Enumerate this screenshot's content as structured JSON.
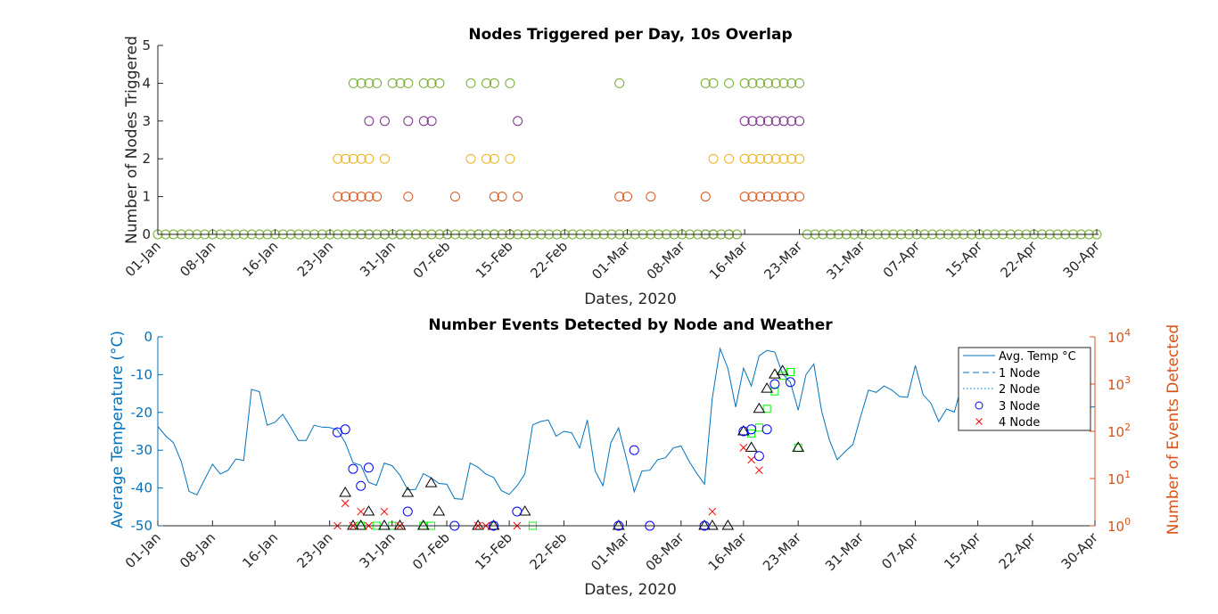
{
  "chart_data": [
    {
      "type": "scatter",
      "title": "Nodes Triggered per Day, 10s Overlap",
      "xlabel": "Dates, 2020",
      "ylabel": "Number of Nodes Triggered",
      "xlim": [
        "2020-01-01",
        "2020-04-30"
      ],
      "ylim": [
        0,
        5
      ],
      "yticks": [
        "0",
        "1",
        "2",
        "3",
        "4",
        "5"
      ],
      "xticks": [
        {
          "date": "2020-01-01",
          "label": "01-Jan"
        },
        {
          "date": "2020-01-08",
          "label": "08-Jan"
        },
        {
          "date": "2020-01-16",
          "label": "16-Jan"
        },
        {
          "date": "2020-01-23",
          "label": "23-Jan"
        },
        {
          "date": "2020-01-31",
          "label": "31-Jan"
        },
        {
          "date": "2020-02-07",
          "label": "07-Feb"
        },
        {
          "date": "2020-02-15",
          "label": "15-Feb"
        },
        {
          "date": "2020-02-22",
          "label": "22-Feb"
        },
        {
          "date": "2020-03-01",
          "label": "01-Mar"
        },
        {
          "date": "2020-03-08",
          "label": "08-Mar"
        },
        {
          "date": "2020-03-16",
          "label": "16-Mar"
        },
        {
          "date": "2020-03-23",
          "label": "23-Mar"
        },
        {
          "date": "2020-03-31",
          "label": "31-Mar"
        },
        {
          "date": "2020-04-07",
          "label": "07-Apr"
        },
        {
          "date": "2020-04-15",
          "label": "15-Apr"
        },
        {
          "date": "2020-04-22",
          "label": "22-Apr"
        },
        {
          "date": "2020-04-30",
          "label": "30-Apr"
        }
      ],
      "marker": "circle",
      "grid": false,
      "series": [
        {
          "color": "#77ac30",
          "y": 4,
          "dates": [
            "2020-01-26",
            "2020-01-27",
            "2020-01-28",
            "2020-01-29",
            "2020-01-31",
            "2020-02-01",
            "2020-02-02",
            "2020-02-04",
            "2020-02-05",
            "2020-02-06",
            "2020-02-10",
            "2020-02-12",
            "2020-02-13",
            "2020-02-15",
            "2020-02-29",
            "2020-03-11",
            "2020-03-12",
            "2020-03-14",
            "2020-03-16",
            "2020-03-17",
            "2020-03-18",
            "2020-03-19",
            "2020-03-20",
            "2020-03-21",
            "2020-03-22",
            "2020-03-23"
          ]
        },
        {
          "color": "#7e2f8e",
          "y": 3,
          "dates": [
            "2020-01-28",
            "2020-01-30",
            "2020-02-02",
            "2020-02-04",
            "2020-02-05",
            "2020-02-16",
            "2020-03-16",
            "2020-03-17",
            "2020-03-18",
            "2020-03-19",
            "2020-03-20",
            "2020-03-21",
            "2020-03-22",
            "2020-03-23"
          ]
        },
        {
          "color": "#edb120",
          "y": 2,
          "dates": [
            "2020-01-24",
            "2020-01-25",
            "2020-01-26",
            "2020-01-27",
            "2020-01-28",
            "2020-01-30",
            "2020-02-10",
            "2020-02-12",
            "2020-02-13",
            "2020-02-15",
            "2020-03-12",
            "2020-03-14",
            "2020-03-16",
            "2020-03-17",
            "2020-03-18",
            "2020-03-19",
            "2020-03-20",
            "2020-03-21",
            "2020-03-22",
            "2020-03-23"
          ]
        },
        {
          "color": "#d95319",
          "y": 1,
          "dates": [
            "2020-01-24",
            "2020-01-25",
            "2020-01-26",
            "2020-01-27",
            "2020-01-28",
            "2020-01-29",
            "2020-02-02",
            "2020-02-08",
            "2020-02-13",
            "2020-02-14",
            "2020-02-16",
            "2020-02-29",
            "2020-03-01",
            "2020-03-04",
            "2020-03-11",
            "2020-03-16",
            "2020-03-17",
            "2020-03-18",
            "2020-03-19",
            "2020-03-20",
            "2020-03-21",
            "2020-03-22",
            "2020-03-23"
          ]
        },
        {
          "color": "#7e2f8e",
          "y": 0,
          "dates": [
            "2020-01-27",
            "2020-01-28",
            "2020-01-30",
            "2020-02-01",
            "2020-02-03",
            "2020-02-07",
            "2020-02-11",
            "2020-02-13",
            "2020-02-15",
            "2020-03-11",
            "2020-03-12",
            "2020-03-14"
          ]
        },
        {
          "color": "#edb120",
          "y": 0,
          "dates": [
            "2020-02-05"
          ]
        },
        {
          "color": "#77ac30",
          "y": 0,
          "date_range": [
            "2020-01-01",
            "2020-04-30"
          ],
          "exclude_range": [
            "2020-03-16",
            "2020-03-23"
          ]
        }
      ]
    },
    {
      "type": "line",
      "title": "Number Events Detected by Node and Weather",
      "xlabel": "Dates, 2020",
      "ylabel_left": "Average Temperature (°C)",
      "ylabel_right": "Number of Events Detected",
      "left_axis_color": "#0072bd",
      "right_axis_color": "#d95319",
      "ylim_left": [
        -50,
        0
      ],
      "yticks_left": [
        "-50",
        "-40",
        "-30",
        "-20",
        "-10",
        "0"
      ],
      "ylim_right": [
        1,
        10000
      ],
      "yscale_right": "log",
      "yticks_right": [
        {
          "value": 1,
          "base": "10",
          "exp": "0"
        },
        {
          "value": 10,
          "base": "10",
          "exp": "1"
        },
        {
          "value": 100,
          "base": "10",
          "exp": "2"
        },
        {
          "value": 1000,
          "base": "10",
          "exp": "3"
        },
        {
          "value": 10000,
          "base": "10",
          "exp": "4"
        }
      ],
      "xlim": [
        "2020-01-01",
        "2020-04-30"
      ],
      "xticks": [
        {
          "date": "2020-01-01",
          "label": "01-Jan"
        },
        {
          "date": "2020-01-08",
          "label": "08-Jan"
        },
        {
          "date": "2020-01-16",
          "label": "16-Jan"
        },
        {
          "date": "2020-01-23",
          "label": "23-Jan"
        },
        {
          "date": "2020-01-31",
          "label": "31-Jan"
        },
        {
          "date": "2020-02-07",
          "label": "07-Feb"
        },
        {
          "date": "2020-02-15",
          "label": "15-Feb"
        },
        {
          "date": "2020-02-22",
          "label": "22-Feb"
        },
        {
          "date": "2020-03-01",
          "label": "01-Mar"
        },
        {
          "date": "2020-03-08",
          "label": "08-Mar"
        },
        {
          "date": "2020-03-16",
          "label": "16-Mar"
        },
        {
          "date": "2020-03-23",
          "label": "23-Mar"
        },
        {
          "date": "2020-03-31",
          "label": "31-Mar"
        },
        {
          "date": "2020-04-07",
          "label": "07-Apr"
        },
        {
          "date": "2020-04-15",
          "label": "15-Apr"
        },
        {
          "date": "2020-04-22",
          "label": "22-Apr"
        },
        {
          "date": "2020-04-30",
          "label": "30-Apr"
        }
      ],
      "legend_position": "top-right",
      "legend": [
        {
          "label": "Avg. Temp °C",
          "style": "solid-line",
          "color": "#0072bd"
        },
        {
          "label": "1 Node",
          "style": "dashed-line",
          "color": "#0072bd"
        },
        {
          "label": "2 Node",
          "style": "dotted-line",
          "color": "#0072bd"
        },
        {
          "label": "3 Node",
          "style": "circle",
          "color": "#0000ff"
        },
        {
          "label": "4 Node",
          "style": "cross",
          "color": "#ff0000"
        }
      ],
      "temperature": {
        "name": "Avg. Temp °C",
        "color": "#0072bd",
        "start": "2020-01-01",
        "values": [
          -23.7,
          -26.2,
          -28.0,
          -33.0,
          -40.9,
          -41.8,
          -37.7,
          -33.7,
          -36.3,
          -35.3,
          -32.3,
          -32.7,
          -13.9,
          -14.5,
          -23.4,
          -22.6,
          -20.5,
          -23.9,
          -27.4,
          -27.4,
          -23.4,
          -23.9,
          -24.0,
          -24.6,
          -28.0,
          -33.3,
          -34.0,
          -38.5,
          -39.3,
          -33.4,
          -34.1,
          -36.6,
          -40.5,
          -40.4,
          -36.2,
          -37.3,
          -38.8,
          -39.0,
          -42.8,
          -43.0,
          -33.4,
          -34.5,
          -36.3,
          -37.2,
          -40.7,
          -41.7,
          -39.4,
          -36.3,
          -23.3,
          -22.4,
          -22.0,
          -26.3,
          -25.0,
          -25.4,
          -29.4,
          -22.0,
          -35.5,
          -39.4,
          -28.1,
          -24.1,
          -32.2,
          -41.0,
          -35.5,
          -35.3,
          -32.5,
          -32.0,
          -29.4,
          -28.9,
          -32.8,
          -36.1,
          -39.0,
          -16.3,
          -3.1,
          -8.4,
          -18.6,
          -8.3,
          -13.0,
          -5.0,
          -3.6,
          -4.0,
          -9.8,
          -12.0,
          -19.4,
          -10.0,
          -7.2,
          -19.7,
          -27.3,
          -32.5,
          -30.4,
          -28.5,
          -21.0,
          -14.1,
          -14.7,
          -13.0,
          -14.1,
          -15.8,
          -16.0,
          -7.6,
          -15.3,
          -17.6,
          -22.4,
          -19.1,
          -19.9,
          -12.4,
          -8.2,
          -7.0,
          -10.0,
          -12.6,
          -14.5,
          -15.0,
          -16.2,
          -17.2,
          -16.0,
          -18.0,
          -19.1,
          -20.2,
          -19.0,
          -18.5,
          -18.3,
          -18.7,
          -18.5
        ]
      },
      "event_series": [
        {
          "name": "1 Node",
          "marker": "square",
          "color": "#00ff00",
          "points": [
            {
              "date": "2020-01-27",
              "count": 1
            },
            {
              "date": "2020-01-29",
              "count": 1
            },
            {
              "date": "2020-01-31",
              "count": 1
            },
            {
              "date": "2020-02-04",
              "count": 1
            },
            {
              "date": "2020-02-05",
              "count": 1
            },
            {
              "date": "2020-02-13",
              "count": 1
            },
            {
              "date": "2020-02-18",
              "count": 1
            },
            {
              "date": "2020-03-17",
              "count": 90
            },
            {
              "date": "2020-03-18",
              "count": 120
            },
            {
              "date": "2020-03-19",
              "count": 300
            },
            {
              "date": "2020-03-20",
              "count": 700
            },
            {
              "date": "2020-03-21",
              "count": 1500
            },
            {
              "date": "2020-03-22",
              "count": 1800
            },
            {
              "date": "2020-03-23",
              "count": 45
            }
          ]
        },
        {
          "name": "2 Node",
          "marker": "triangle",
          "color": "#000000",
          "points": [
            {
              "date": "2020-01-25",
              "count": 5
            },
            {
              "date": "2020-01-26",
              "count": 1
            },
            {
              "date": "2020-01-27",
              "count": 1
            },
            {
              "date": "2020-01-28",
              "count": 2
            },
            {
              "date": "2020-01-30",
              "count": 1
            },
            {
              "date": "2020-02-01",
              "count": 1
            },
            {
              "date": "2020-02-02",
              "count": 5
            },
            {
              "date": "2020-02-04",
              "count": 1
            },
            {
              "date": "2020-02-05",
              "count": 8
            },
            {
              "date": "2020-02-06",
              "count": 2
            },
            {
              "date": "2020-02-11",
              "count": 1
            },
            {
              "date": "2020-02-13",
              "count": 1
            },
            {
              "date": "2020-02-17",
              "count": 2
            },
            {
              "date": "2020-02-29",
              "count": 1
            },
            {
              "date": "2020-03-11",
              "count": 1
            },
            {
              "date": "2020-03-12",
              "count": 1
            },
            {
              "date": "2020-03-14",
              "count": 1
            },
            {
              "date": "2020-03-16",
              "count": 100
            },
            {
              "date": "2020-03-17",
              "count": 45
            },
            {
              "date": "2020-03-18",
              "count": 300
            },
            {
              "date": "2020-03-19",
              "count": 800
            },
            {
              "date": "2020-03-20",
              "count": 1600
            },
            {
              "date": "2020-03-21",
              "count": 1900
            },
            {
              "date": "2020-03-23",
              "count": 45
            }
          ]
        },
        {
          "name": "3 Node",
          "marker": "circle",
          "color": "#0000ff",
          "points": [
            {
              "date": "2020-01-24",
              "count": 95
            },
            {
              "date": "2020-01-25",
              "count": 110
            },
            {
              "date": "2020-01-26",
              "count": 16
            },
            {
              "date": "2020-01-27",
              "count": 7
            },
            {
              "date": "2020-01-28",
              "count": 17
            },
            {
              "date": "2020-02-02",
              "count": 2
            },
            {
              "date": "2020-02-08",
              "count": 1
            },
            {
              "date": "2020-02-13",
              "count": 1
            },
            {
              "date": "2020-02-16",
              "count": 2
            },
            {
              "date": "2020-02-29",
              "count": 1
            },
            {
              "date": "2020-03-02",
              "count": 40
            },
            {
              "date": "2020-03-04",
              "count": 1
            },
            {
              "date": "2020-03-11",
              "count": 1
            },
            {
              "date": "2020-03-16",
              "count": 100
            },
            {
              "date": "2020-03-17",
              "count": 110
            },
            {
              "date": "2020-03-18",
              "count": 30
            },
            {
              "date": "2020-03-19",
              "count": 110
            },
            {
              "date": "2020-03-20",
              "count": 1000
            },
            {
              "date": "2020-03-22",
              "count": 1100
            }
          ]
        },
        {
          "name": "4 Node",
          "marker": "cross",
          "color": "#ff0000",
          "points": [
            {
              "date": "2020-01-24",
              "count": 1
            },
            {
              "date": "2020-01-25",
              "count": 3
            },
            {
              "date": "2020-01-26",
              "count": 1
            },
            {
              "date": "2020-01-27",
              "count": 2
            },
            {
              "date": "2020-01-28",
              "count": 1
            },
            {
              "date": "2020-01-30",
              "count": 2
            },
            {
              "date": "2020-02-01",
              "count": 1
            },
            {
              "date": "2020-02-11",
              "count": 1
            },
            {
              "date": "2020-02-12",
              "count": 1
            },
            {
              "date": "2020-02-16",
              "count": 1
            },
            {
              "date": "2020-03-12",
              "count": 2
            },
            {
              "date": "2020-03-16",
              "count": 45
            },
            {
              "date": "2020-03-17",
              "count": 25
            },
            {
              "date": "2020-03-18",
              "count": 15
            }
          ]
        }
      ]
    }
  ]
}
